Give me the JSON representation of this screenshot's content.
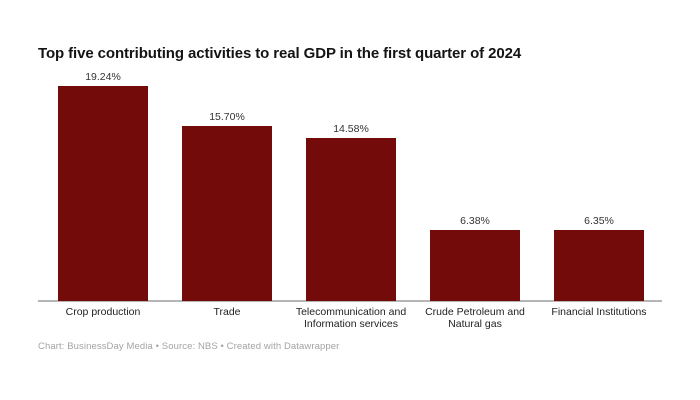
{
  "header": {
    "title": "Top five contributing activities to real GDP in the first quarter of 2024"
  },
  "chart_data": {
    "type": "bar",
    "title": "Top five contributing activities to real GDP in the first quarter of 2024",
    "categories": [
      "Crop production",
      "Trade",
      "Telecommunication and Information services",
      "Crude Petroleum and Natural gas",
      "Financial Institutions"
    ],
    "values": [
      19.24,
      15.7,
      14.58,
      6.38,
      6.35
    ],
    "value_labels": [
      "19.24%",
      "15.70%",
      "14.58%",
      "6.38%",
      "6.35%"
    ],
    "xlabel": "",
    "ylabel": "",
    "ylim": [
      0,
      19.24
    ],
    "grid": false,
    "legend": false,
    "bar_color": "#740b0b",
    "axis_line_color": "#b5b5b5",
    "value_label_color": "#333333",
    "category_label_color": "#222222"
  },
  "footer": {
    "attribution": "Chart: BusinessDay Media • Source: NBS • Created with Datawrapper"
  }
}
